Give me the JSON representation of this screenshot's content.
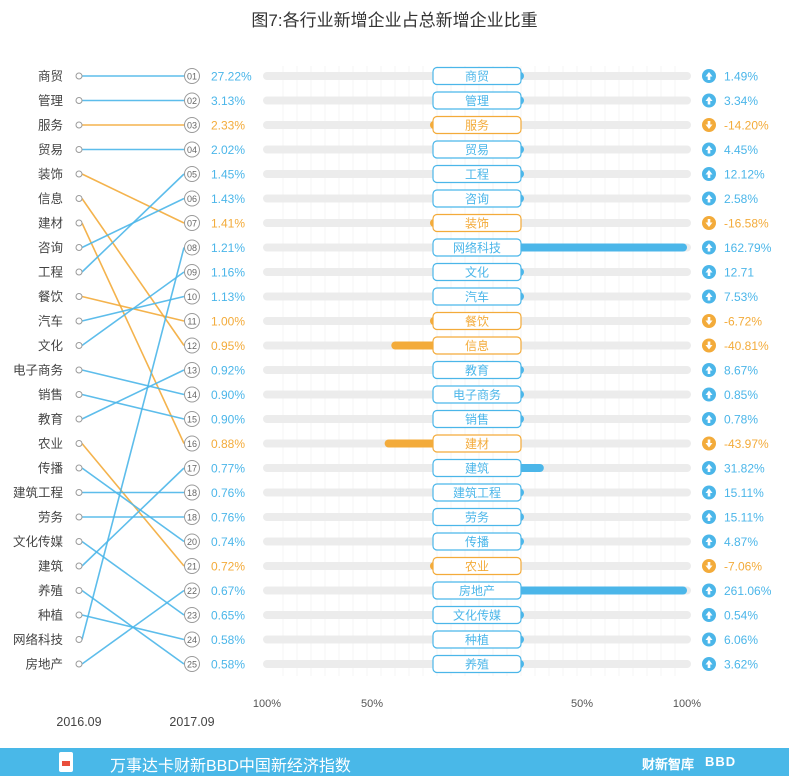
{
  "title": "图7:各行业新增企业占总新增企业比重",
  "footer": {
    "text": "万事达卡财新BBD中国新经济指数",
    "brand": "财新智库",
    "logo": "BBD"
  },
  "colors": {
    "blue": "#4bb6e9",
    "orange": "#f3ab3a",
    "track": "#ececec",
    "label_text": "#444444"
  },
  "chart_data": {
    "type": "bar",
    "x_axis_label_left": "2016.09",
    "x_axis_label_right": "2017.09",
    "axis_ticks_left": [
      "100%",
      "50%"
    ],
    "axis_ticks_right": [
      "50%",
      "100%"
    ],
    "axis_range": [
      -100,
      100
    ],
    "industries_2016": [
      "商贸",
      "管理",
      "服务",
      "贸易",
      "装饰",
      "信息",
      "建材",
      "咨询",
      "工程",
      "餐饮",
      "汽车",
      "文化",
      "电子商务",
      "销售",
      "教育",
      "农业",
      "传播",
      "建筑工程",
      "劳务",
      "文化传媒",
      "建筑",
      "养殖",
      "种植",
      "网络科技",
      "房地产"
    ],
    "rows": [
      {
        "rank": "01",
        "share": "27.22%",
        "name": "商贸",
        "growth": 1.49,
        "growth_label": "1.49%"
      },
      {
        "rank": "02",
        "share": "3.13%",
        "name": "管理",
        "growth": 3.34,
        "growth_label": "3.34%"
      },
      {
        "rank": "03",
        "share": "2.33%",
        "name": "服务",
        "growth": -14.2,
        "growth_label": "-14.20%"
      },
      {
        "rank": "04",
        "share": "2.02%",
        "name": "贸易",
        "growth": 4.45,
        "growth_label": "4.45%"
      },
      {
        "rank": "05",
        "share": "1.45%",
        "name": "工程",
        "growth": 12.12,
        "growth_label": "12.12%"
      },
      {
        "rank": "06",
        "share": "1.43%",
        "name": "咨询",
        "growth": 2.58,
        "growth_label": "2.58%"
      },
      {
        "rank": "07",
        "share": "1.41%",
        "name": "装饰",
        "growth": -16.58,
        "growth_label": "-16.58%"
      },
      {
        "rank": "08",
        "share": "1.21%",
        "name": "网络科技",
        "growth": 162.79,
        "growth_label": "162.79%"
      },
      {
        "rank": "09",
        "share": "1.16%",
        "name": "文化",
        "growth": 12.71,
        "growth_label": "12.71"
      },
      {
        "rank": "10",
        "share": "1.13%",
        "name": "汽车",
        "growth": 7.53,
        "growth_label": "7.53%"
      },
      {
        "rank": "11",
        "share": "1.00%",
        "name": "餐饮",
        "growth": -6.72,
        "growth_label": "-6.72%"
      },
      {
        "rank": "12",
        "share": "0.95%",
        "name": "信息",
        "growth": -40.81,
        "growth_label": "-40.81%"
      },
      {
        "rank": "13",
        "share": "0.92%",
        "name": "教育",
        "growth": 8.67,
        "growth_label": "8.67%"
      },
      {
        "rank": "14",
        "share": "0.90%",
        "name": "电子商务",
        "growth": 0.85,
        "growth_label": "0.85%"
      },
      {
        "rank": "15",
        "share": "0.90%",
        "name": "销售",
        "growth": 0.78,
        "growth_label": "0.78%"
      },
      {
        "rank": "16",
        "share": "0.88%",
        "name": "建材",
        "growth": -43.97,
        "growth_label": "-43.97%"
      },
      {
        "rank": "17",
        "share": "0.77%",
        "name": "建筑",
        "growth": 31.82,
        "growth_label": "31.82%"
      },
      {
        "rank": "18",
        "share": "0.76%",
        "name": "建筑工程",
        "growth": 15.11,
        "growth_label": "15.11%"
      },
      {
        "rank": "18",
        "share": "0.76%",
        "name": "劳务",
        "growth": 15.11,
        "growth_label": "15.11%"
      },
      {
        "rank": "20",
        "share": "0.74%",
        "name": "传播",
        "growth": 4.87,
        "growth_label": "4.87%"
      },
      {
        "rank": "21",
        "share": "0.72%",
        "name": "农业",
        "growth": -7.06,
        "growth_label": "-7.06%"
      },
      {
        "rank": "22",
        "share": "0.67%",
        "name": "房地产",
        "growth": 261.06,
        "growth_label": "261.06%"
      },
      {
        "rank": "23",
        "share": "0.65%",
        "name": "文化传媒",
        "growth": 0.54,
        "growth_label": "0.54%"
      },
      {
        "rank": "24",
        "share": "0.58%",
        "name": "种植",
        "growth": 6.06,
        "growth_label": "6.06%"
      },
      {
        "rank": "25",
        "share": "0.58%",
        "name": "养殖",
        "growth": 3.62,
        "growth_label": "3.62%"
      }
    ]
  }
}
